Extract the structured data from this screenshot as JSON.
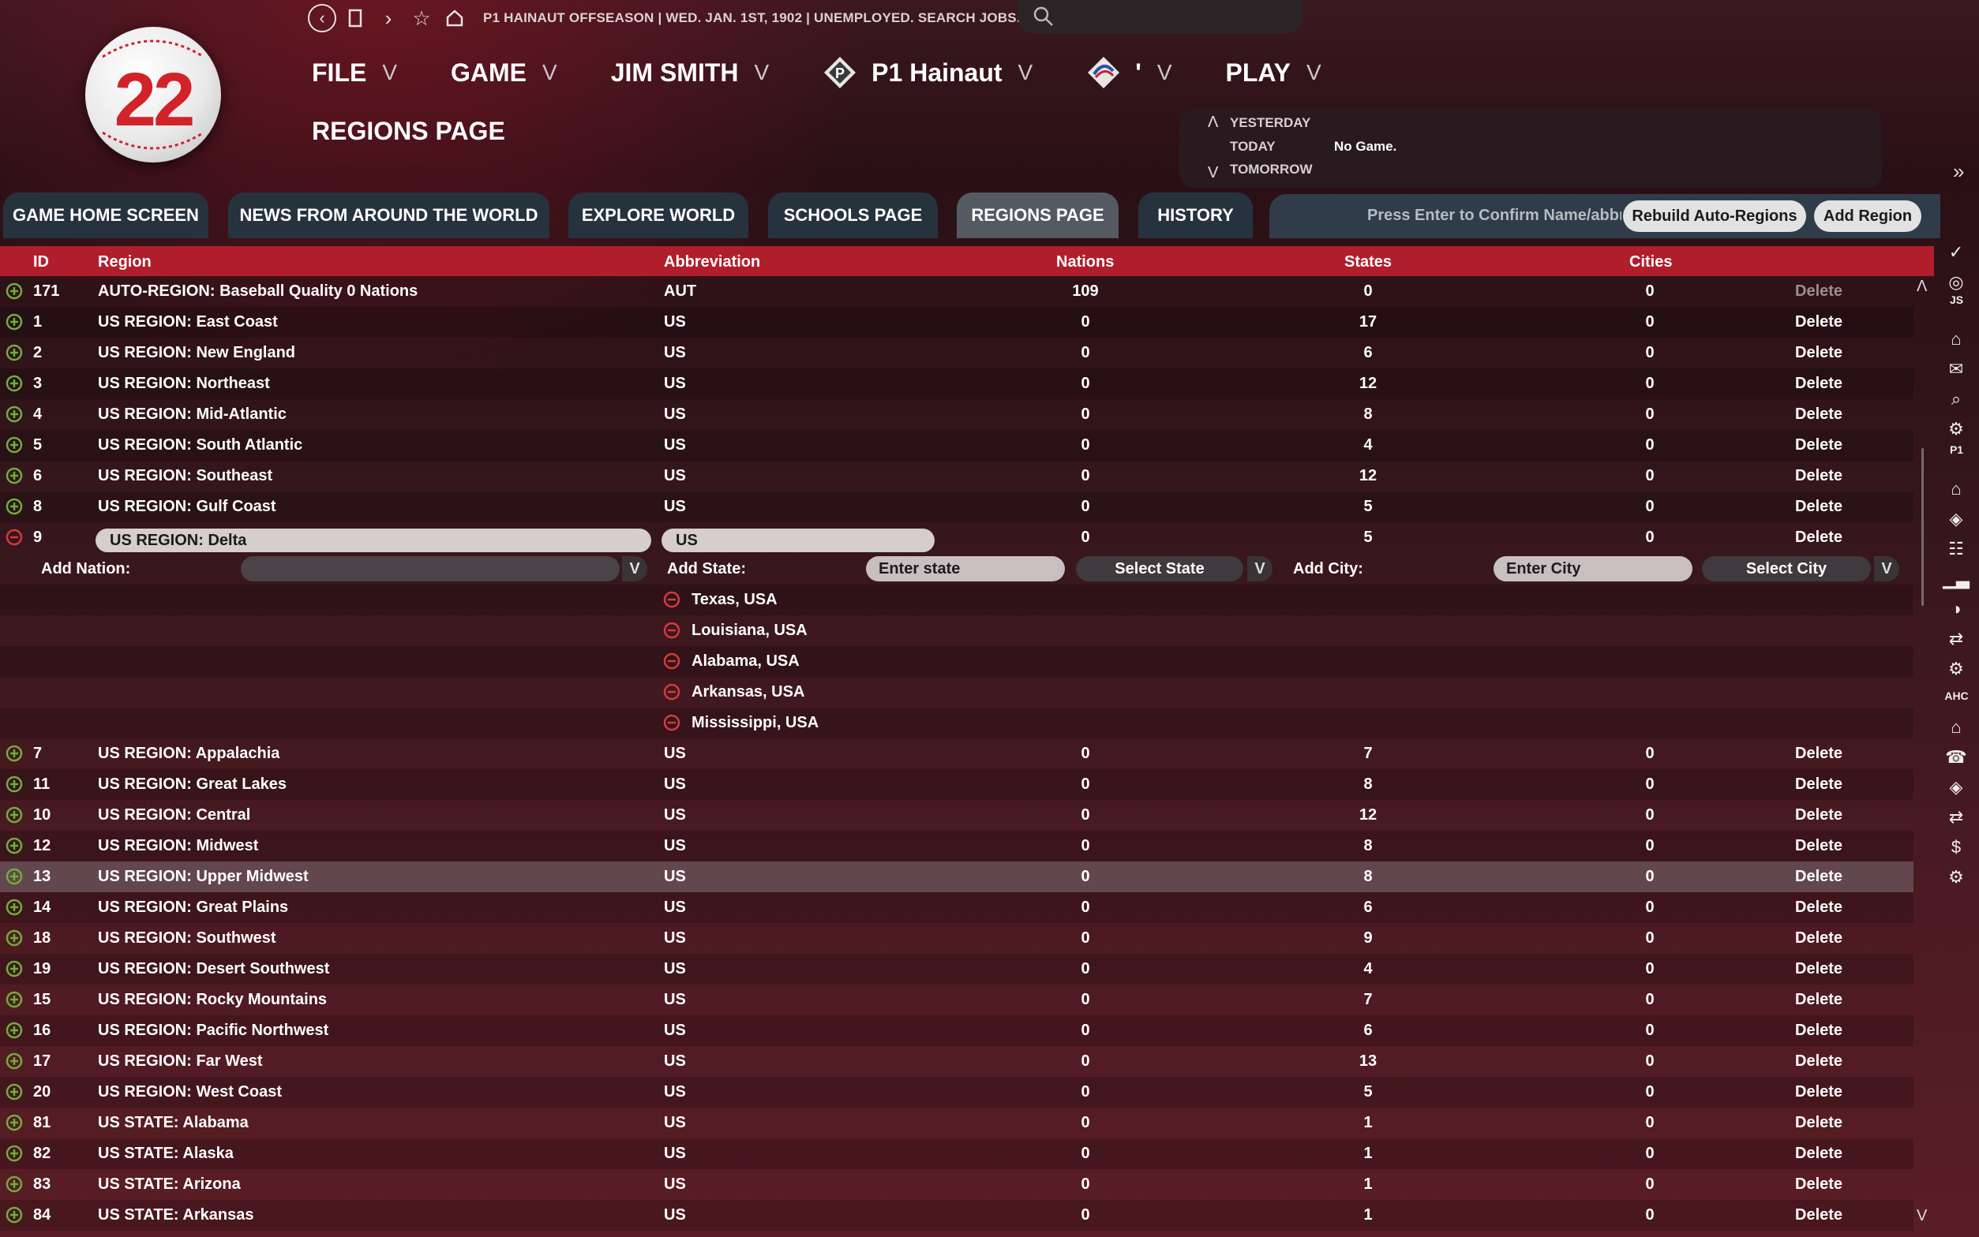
{
  "logo": {
    "number": "22"
  },
  "topbar": {
    "status": "P1 HAINAUT OFFSEASON  |  WED. JAN. 1ST, 1902  |  UNEMPLOYED. SEARCH JOBS...",
    "icons": [
      "back-icon",
      "window-icon",
      "forward-icon",
      "star-icon",
      "home-icon",
      "search-icon"
    ]
  },
  "menu": {
    "file": "FILE",
    "game": "GAME",
    "manager": "JIM SMITH",
    "team": "P1 Hainaut",
    "league": "'",
    "play": "PLAY",
    "chevron": "V"
  },
  "page_title": "REGIONS PAGE",
  "day_panel": {
    "yesterday": "YESTERDAY",
    "today": "TODAY",
    "tomorrow": "TOMORROW",
    "today_value": "No Game.",
    "up": "Λ",
    "down": "V"
  },
  "tabs": [
    {
      "label": "GAME HOME SCREEN"
    },
    {
      "label": "NEWS FROM AROUND THE WORLD"
    },
    {
      "label": "EXPLORE WORLD"
    },
    {
      "label": "SCHOOLS PAGE"
    },
    {
      "label": "REGIONS PAGE",
      "active": true
    },
    {
      "label": "HISTORY"
    }
  ],
  "toolbar": {
    "hint": "Press Enter to Confirm Name/abbreviation",
    "rebuild_label": "Rebuild Auto-Regions",
    "add_label": "Add Region"
  },
  "columns": {
    "id": "ID",
    "region": "Region",
    "abbreviation": "Abbreviation",
    "nations": "Nations",
    "states": "States",
    "cities": "Cities"
  },
  "rows_top": [
    {
      "id": "171",
      "region": "AUTO-REGION: Baseball Quality 0 Nations",
      "abbr": "AUT",
      "nations": "109",
      "states": "0",
      "cities": "0",
      "delete": "Delete",
      "disabled": true
    },
    {
      "id": "1",
      "region": "US REGION: East Coast",
      "abbr": "US",
      "nations": "0",
      "states": "17",
      "cities": "0",
      "delete": "Delete"
    },
    {
      "id": "2",
      "region": "US REGION: New England",
      "abbr": "US",
      "nations": "0",
      "states": "6",
      "cities": "0",
      "delete": "Delete"
    },
    {
      "id": "3",
      "region": "US REGION: Northeast",
      "abbr": "US",
      "nations": "0",
      "states": "12",
      "cities": "0",
      "delete": "Delete"
    },
    {
      "id": "4",
      "region": "US REGION: Mid-Atlantic",
      "abbr": "US",
      "nations": "0",
      "states": "8",
      "cities": "0",
      "delete": "Delete"
    },
    {
      "id": "5",
      "region": "US REGION: South Atlantic",
      "abbr": "US",
      "nations": "0",
      "states": "4",
      "cities": "0",
      "delete": "Delete"
    },
    {
      "id": "6",
      "region": "US REGION: Southeast",
      "abbr": "US",
      "nations": "0",
      "states": "12",
      "cities": "0",
      "delete": "Delete"
    },
    {
      "id": "8",
      "region": "US REGION: Gulf Coast",
      "abbr": "US",
      "nations": "0",
      "states": "5",
      "cities": "0",
      "delete": "Delete"
    }
  ],
  "expanded": {
    "id": "9",
    "region": "US REGION: Delta",
    "abbr": "US",
    "nations": "0",
    "states": "5",
    "cities": "0",
    "delete": "Delete",
    "add_nation_label": "Add Nation:",
    "add_state_label": "Add State:",
    "state_placeholder": "Enter state",
    "select_state": "Select State",
    "add_city_label": "Add City:",
    "city_placeholder": "Enter City",
    "select_city": "Select City",
    "chevron": "V",
    "states_list": [
      "Texas, USA",
      "Louisiana, USA",
      "Alabama, USA",
      "Arkansas, USA",
      "Mississippi, USA"
    ]
  },
  "rows_bottom": [
    {
      "id": "7",
      "region": "US REGION: Appalachia",
      "abbr": "US",
      "nations": "0",
      "states": "7",
      "cities": "0",
      "delete": "Delete"
    },
    {
      "id": "11",
      "region": "US REGION: Great Lakes",
      "abbr": "US",
      "nations": "0",
      "states": "8",
      "cities": "0",
      "delete": "Delete"
    },
    {
      "id": "10",
      "region": "US REGION: Central",
      "abbr": "US",
      "nations": "0",
      "states": "12",
      "cities": "0",
      "delete": "Delete"
    },
    {
      "id": "12",
      "region": "US REGION: Midwest",
      "abbr": "US",
      "nations": "0",
      "states": "8",
      "cities": "0",
      "delete": "Delete"
    },
    {
      "id": "13",
      "region": "US REGION: Upper Midwest",
      "abbr": "US",
      "nations": "0",
      "states": "8",
      "cities": "0",
      "delete": "Delete",
      "selected": true
    },
    {
      "id": "14",
      "region": "US REGION: Great Plains",
      "abbr": "US",
      "nations": "0",
      "states": "6",
      "cities": "0",
      "delete": "Delete"
    },
    {
      "id": "18",
      "region": "US REGION: Southwest",
      "abbr": "US",
      "nations": "0",
      "states": "9",
      "cities": "0",
      "delete": "Delete"
    },
    {
      "id": "19",
      "region": "US REGION: Desert Southwest",
      "abbr": "US",
      "nations": "0",
      "states": "4",
      "cities": "0",
      "delete": "Delete"
    },
    {
      "id": "15",
      "region": "US REGION: Rocky Mountains",
      "abbr": "US",
      "nations": "0",
      "states": "7",
      "cities": "0",
      "delete": "Delete"
    },
    {
      "id": "16",
      "region": "US REGION: Pacific Northwest",
      "abbr": "US",
      "nations": "0",
      "states": "6",
      "cities": "0",
      "delete": "Delete"
    },
    {
      "id": "17",
      "region": "US REGION: Far West",
      "abbr": "US",
      "nations": "0",
      "states": "13",
      "cities": "0",
      "delete": "Delete"
    },
    {
      "id": "20",
      "region": "US REGION: West Coast",
      "abbr": "US",
      "nations": "0",
      "states": "5",
      "cities": "0",
      "delete": "Delete"
    },
    {
      "id": "81",
      "region": "US STATE: Alabama",
      "abbr": "US",
      "nations": "0",
      "states": "1",
      "cities": "0",
      "delete": "Delete"
    },
    {
      "id": "82",
      "region": "US STATE: Alaska",
      "abbr": "US",
      "nations": "0",
      "states": "1",
      "cities": "0",
      "delete": "Delete"
    },
    {
      "id": "83",
      "region": "US STATE: Arizona",
      "abbr": "US",
      "nations": "0",
      "states": "1",
      "cities": "0",
      "delete": "Delete"
    },
    {
      "id": "84",
      "region": "US STATE: Arkansas",
      "abbr": "US",
      "nations": "0",
      "states": "1",
      "cities": "0",
      "delete": "Delete"
    }
  ],
  "sidebar": {
    "collapse": "»",
    "labels": {
      "js": "JS",
      "p1": "P1",
      "ahc": "AHC"
    },
    "icons": [
      "check-icon",
      "globe-icon",
      "home-icon",
      "mail-icon",
      "search-icon",
      "gear-icon",
      "home-icon",
      "map-pin-icon",
      "news-icon",
      "chart-icon",
      "baseball-icon",
      "transaction-icon",
      "gear-icon",
      "home-icon",
      "scout-icon",
      "map-pin-icon",
      "transaction-icon",
      "dollar-icon",
      "gear-icon"
    ]
  },
  "scroll": {
    "up": "Λ",
    "down": "V"
  },
  "colors": {
    "header_red": "#b01e2c",
    "tab_bg": "#27323f",
    "tab_active": "#545a62",
    "add_green": "#6fae3a",
    "remove_red": "#d83a3a"
  }
}
